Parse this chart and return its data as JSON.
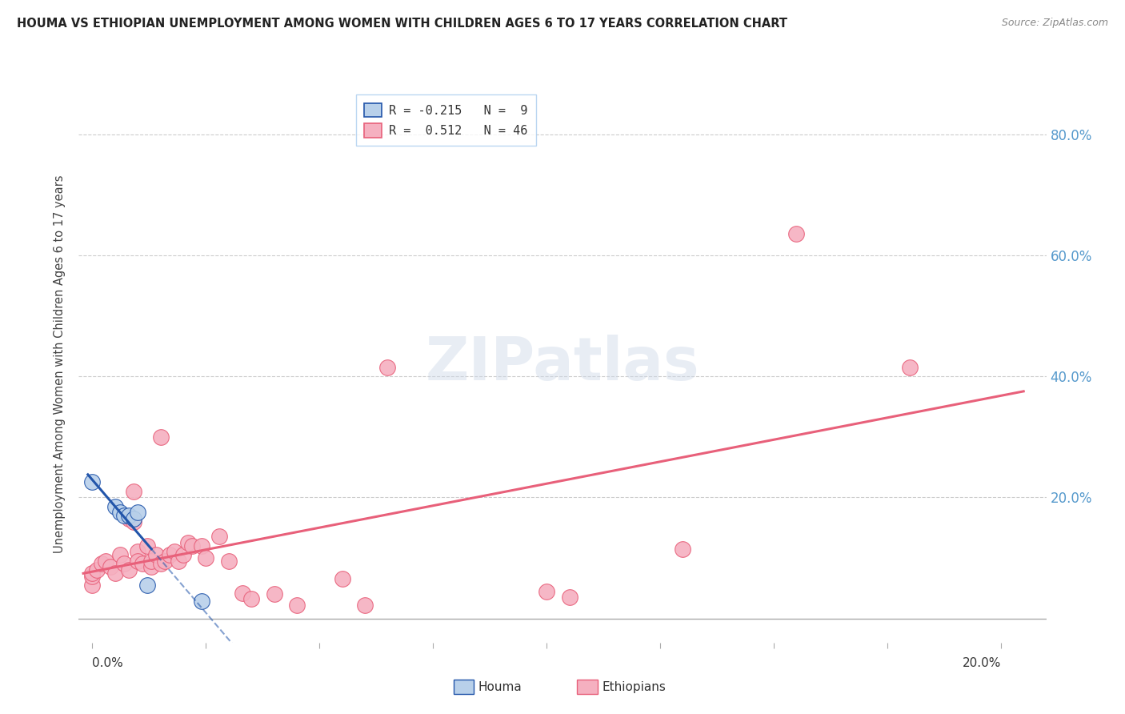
{
  "title": "HOUMA VS ETHIOPIAN UNEMPLOYMENT AMONG WOMEN WITH CHILDREN AGES 6 TO 17 YEARS CORRELATION CHART",
  "source": "Source: ZipAtlas.com",
  "ylabel": "Unemployment Among Women with Children Ages 6 to 17 years",
  "yticks": [
    0.0,
    0.2,
    0.4,
    0.6,
    0.8
  ],
  "ytick_labels": [
    "",
    "20.0%",
    "40.0%",
    "60.0%",
    "80.0%"
  ],
  "xlim": [
    -0.003,
    0.21
  ],
  "ylim": [
    -0.04,
    0.88
  ],
  "legend_houma": "R = -0.215   N =  9",
  "legend_ethiopians": "R =  0.512   N = 46",
  "houma_color": "#b8d0ea",
  "ethiopians_color": "#f5b0c0",
  "houma_line_color": "#2255aa",
  "ethiopians_line_color": "#e8607a",
  "background_color": "#ffffff",
  "watermark_text": "ZIPatlas",
  "houma_x": [
    0.0,
    0.005,
    0.006,
    0.007,
    0.008,
    0.009,
    0.01,
    0.012,
    0.024
  ],
  "houma_y": [
    0.225,
    0.185,
    0.175,
    0.17,
    0.17,
    0.165,
    0.175,
    0.055,
    0.028
  ],
  "ethiopians_x": [
    0.0,
    0.0,
    0.0,
    0.001,
    0.002,
    0.003,
    0.004,
    0.005,
    0.006,
    0.007,
    0.008,
    0.008,
    0.009,
    0.009,
    0.01,
    0.01,
    0.011,
    0.012,
    0.013,
    0.013,
    0.014,
    0.015,
    0.015,
    0.016,
    0.017,
    0.018,
    0.019,
    0.02,
    0.021,
    0.022,
    0.024,
    0.025,
    0.028,
    0.03,
    0.033,
    0.035,
    0.04,
    0.045,
    0.055,
    0.06,
    0.065,
    0.1,
    0.105,
    0.13,
    0.155,
    0.18
  ],
  "ethiopians_y": [
    0.055,
    0.07,
    0.075,
    0.08,
    0.09,
    0.095,
    0.085,
    0.075,
    0.105,
    0.09,
    0.165,
    0.08,
    0.21,
    0.16,
    0.11,
    0.095,
    0.09,
    0.12,
    0.085,
    0.095,
    0.105,
    0.3,
    0.09,
    0.095,
    0.105,
    0.11,
    0.095,
    0.105,
    0.125,
    0.12,
    0.12,
    0.1,
    0.135,
    0.095,
    0.042,
    0.033,
    0.04,
    0.022,
    0.065,
    0.022,
    0.415,
    0.045,
    0.035,
    0.115,
    0.635,
    0.415
  ],
  "xtick_positions": [
    0.0,
    0.025,
    0.05,
    0.075,
    0.1,
    0.125,
    0.15,
    0.175,
    0.2
  ]
}
